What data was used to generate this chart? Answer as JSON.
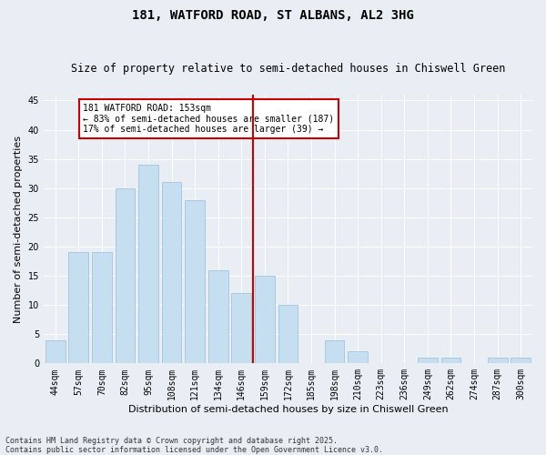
{
  "title1": "181, WATFORD ROAD, ST ALBANS, AL2 3HG",
  "title2": "Size of property relative to semi-detached houses in Chiswell Green",
  "xlabel": "Distribution of semi-detached houses by size in Chiswell Green",
  "ylabel": "Number of semi-detached properties",
  "categories": [
    "44sqm",
    "57sqm",
    "70sqm",
    "82sqm",
    "95sqm",
    "108sqm",
    "121sqm",
    "134sqm",
    "146sqm",
    "159sqm",
    "172sqm",
    "185sqm",
    "198sqm",
    "210sqm",
    "223sqm",
    "236sqm",
    "249sqm",
    "262sqm",
    "274sqm",
    "287sqm",
    "300sqm"
  ],
  "values": [
    4,
    19,
    19,
    30,
    34,
    31,
    28,
    16,
    12,
    15,
    10,
    0,
    4,
    2,
    0,
    0,
    1,
    1,
    0,
    1,
    1
  ],
  "bar_color": "#c5dff0",
  "bar_edgecolor": "#a0c4df",
  "vline_x_index": 8.5,
  "vline_color": "#cc0000",
  "annotation_text": "181 WATFORD ROAD: 153sqm\n← 83% of semi-detached houses are smaller (187)\n17% of semi-detached houses are larger (39) →",
  "annotation_box_facecolor": "#ffffff",
  "annotation_box_edgecolor": "#cc0000",
  "ylim": [
    0,
    46
  ],
  "yticks": [
    0,
    5,
    10,
    15,
    20,
    25,
    30,
    35,
    40,
    45
  ],
  "footer1": "Contains HM Land Registry data © Crown copyright and database right 2025.",
  "footer2": "Contains public sector information licensed under the Open Government Licence v3.0.",
  "background_color": "#e8eef4",
  "plot_background": "#e8eef4",
  "grid_color": "#ffffff",
  "title1_fontsize": 10,
  "title2_fontsize": 8.5,
  "tick_fontsize": 7,
  "label_fontsize": 8,
  "annotation_fontsize": 7,
  "footer_fontsize": 6
}
